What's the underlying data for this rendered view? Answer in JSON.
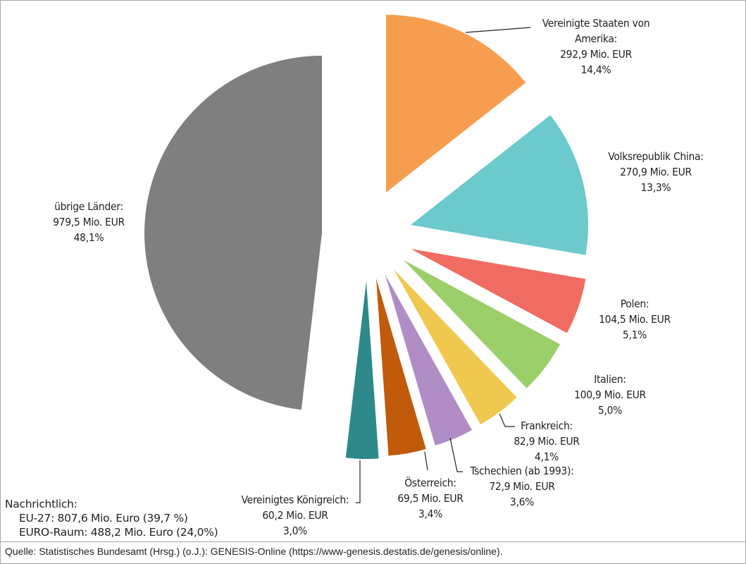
{
  "chart_data": {
    "type": "pie",
    "unit": "Mio. EUR",
    "slices": [
      {
        "name": "Vereinigte Staaten von Amerika:",
        "value_text": "292,9 Mio. EUR",
        "value": 292.9,
        "percent_text": "14,4%",
        "percent": 14.4,
        "color": "#F79D4F"
      },
      {
        "name": "Volksrepublik China:",
        "value_text": "270,9 Mio. EUR",
        "value": 270.9,
        "percent_text": "13,3%",
        "percent": 13.3,
        "color": "#6CC9CC"
      },
      {
        "name": "Polen:",
        "value_text": "104,5 Mio. EUR",
        "value": 104.5,
        "percent_text": "5,1%",
        "percent": 5.1,
        "color": "#F06B61"
      },
      {
        "name": "Italien:",
        "value_text": "100,9 Mio. EUR",
        "value": 100.9,
        "percent_text": "5,0%",
        "percent": 5.0,
        "color": "#9BCF6A"
      },
      {
        "name": "Frankreich:",
        "value_text": "82,9 Mio. EUR",
        "value": 82.9,
        "percent_text": "4,1%",
        "percent": 4.1,
        "color": "#F0C850"
      },
      {
        "name": "Tschechien (ab 1993):",
        "value_text": "72,9 Mio. EUR",
        "value": 72.9,
        "percent_text": "3,6%",
        "percent": 3.6,
        "color": "#B08DC4"
      },
      {
        "name": "Österreich:",
        "value_text": "69,5 Mio. EUR",
        "value": 69.5,
        "percent_text": "3,4%",
        "percent": 3.4,
        "color": "#C15A0A"
      },
      {
        "name": "Vereinigtes Königreich:",
        "value_text": "60,2 Mio. EUR",
        "value": 60.2,
        "percent_text": "3,0%",
        "percent": 3.0,
        "color": "#2E8A8A"
      },
      {
        "name": "übrige Länder:",
        "value_text": "979,5 Mio. EUR",
        "value": 979.5,
        "percent_text": "48,1%",
        "percent": 48.1,
        "color": "#7F7F7F"
      }
    ]
  },
  "note": {
    "title": "Nachrichtlich:",
    "lines": [
      "EU-27: 807,6 Mio. Euro (39,7 %)",
      "EURO-Raum: 488,2 Mio. Euro (24,0%)"
    ]
  },
  "source": "Quelle: Statistisches Bundesamt (Hrsg.) (o.J.): GENESIS-Online (https://www-genesis.destatis.de/genesis/online)."
}
